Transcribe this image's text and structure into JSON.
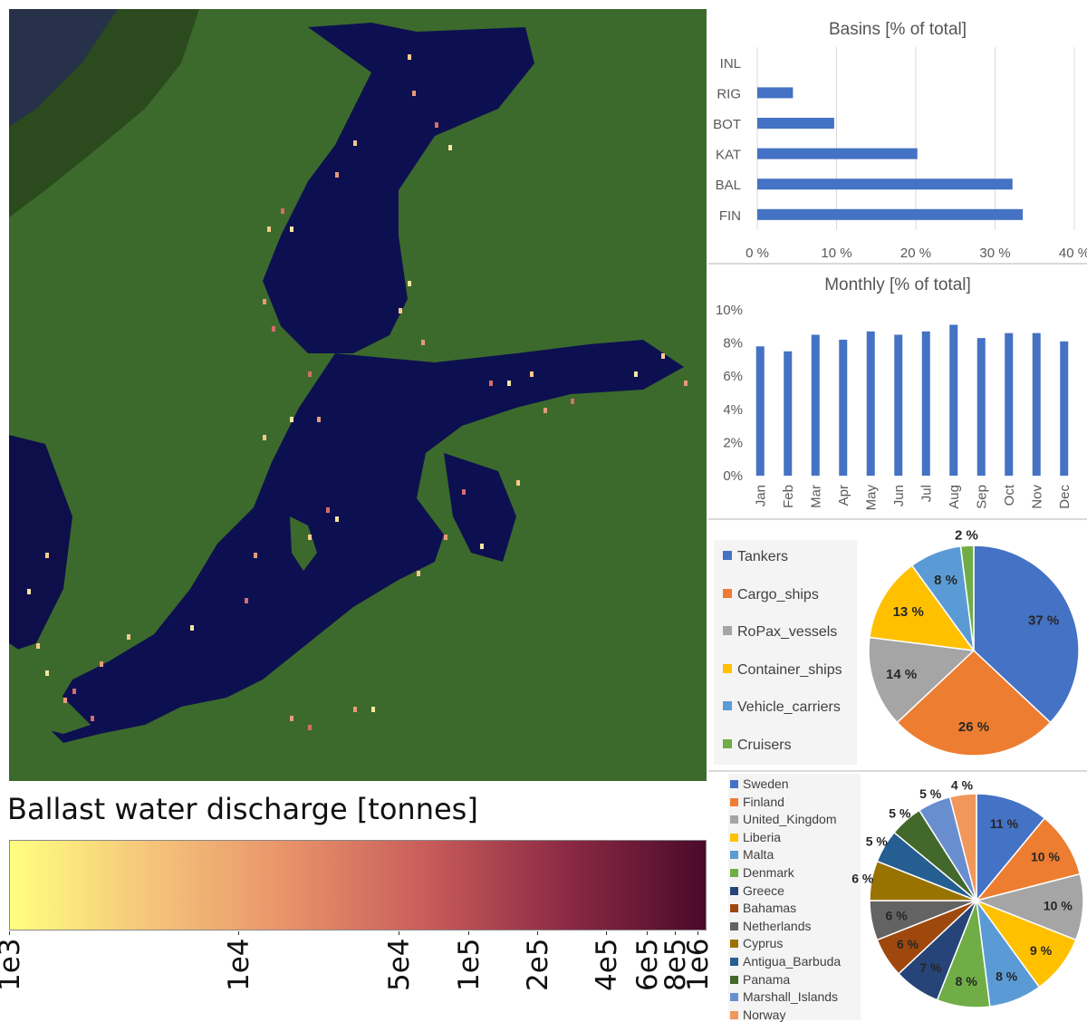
{
  "map": {
    "colorbar_title": "Ballast water discharge [tonnes]",
    "colorbar_ticks": [
      "1e3",
      "1e4",
      "5e4",
      "1e5",
      "2e5",
      "4e5",
      "6e5",
      "8e5",
      "1e6"
    ],
    "colorbar_colors": [
      "#ffff80",
      "#f5c57a",
      "#e8926a",
      "#c85c5a",
      "#8c2a45",
      "#4a0a2a"
    ]
  },
  "chart_data": [
    {
      "type": "bar",
      "orientation": "horizontal",
      "title": "Basins [% of total]",
      "categories": [
        "INL",
        "RIG",
        "BOT",
        "KAT",
        "BAL",
        "FIN"
      ],
      "values": [
        0,
        4.5,
        9.7,
        20.2,
        32.2,
        33.5
      ],
      "xlim": [
        0,
        40
      ],
      "xticks": [
        "0 %",
        "10 %",
        "20 %",
        "30 %",
        "40 %"
      ],
      "grid": true,
      "color": "#4472c4"
    },
    {
      "type": "bar",
      "title": "Monthly [% of total]",
      "categories": [
        "Jan",
        "Feb",
        "Mar",
        "Apr",
        "May",
        "Jun",
        "Jul",
        "Aug",
        "Sep",
        "Oct",
        "Nov",
        "Dec"
      ],
      "values": [
        7.8,
        7.5,
        8.5,
        8.2,
        8.7,
        8.5,
        8.7,
        9.1,
        8.3,
        8.6,
        8.6,
        8.1
      ],
      "ylim": [
        0,
        10
      ],
      "yticks": [
        "0%",
        "2%",
        "4%",
        "6%",
        "8%",
        "10%"
      ],
      "grid": false,
      "color": "#4472c4"
    },
    {
      "type": "pie",
      "labels": [
        "Tankers",
        "Cargo_ships",
        "RoPax_vessels",
        "Container_ships",
        "Vehicle_carriers",
        "Cruisers"
      ],
      "values": [
        37,
        26,
        14,
        13,
        8,
        2
      ],
      "value_labels": [
        "37 %",
        "26 %",
        "14 %",
        "13 %",
        "8 %",
        "2 %"
      ],
      "colors": [
        "#4472c4",
        "#ed7d31",
        "#a5a5a5",
        "#ffc000",
        "#5b9bd5",
        "#70ad47"
      ],
      "legend": "left"
    },
    {
      "type": "pie",
      "labels": [
        "Sweden",
        "Finland",
        "United_Kingdom",
        "Liberia",
        "Malta",
        "Denmark",
        "Greece",
        "Bahamas",
        "Netherlands",
        "Cyprus",
        "Antigua_Barbuda",
        "Panama",
        "Marshall_Islands",
        "Norway"
      ],
      "values": [
        11,
        10,
        10,
        9,
        8,
        8,
        7,
        6,
        6,
        6,
        5,
        5,
        5,
        4
      ],
      "value_labels": [
        "11 %",
        "10 %",
        "10 %",
        "9 %",
        "8 %",
        "8 %",
        "7 %",
        "6 %",
        "6 %",
        "6 %",
        "5 %",
        "5 %",
        "5 %",
        "4 %"
      ],
      "colors": [
        "#4472c4",
        "#ed7d31",
        "#a5a5a5",
        "#ffc000",
        "#5b9bd5",
        "#70ad47",
        "#264478",
        "#9e480e",
        "#636363",
        "#997300",
        "#255e91",
        "#43682b",
        "#698ed0",
        "#f1975a"
      ],
      "legend": "left"
    }
  ]
}
